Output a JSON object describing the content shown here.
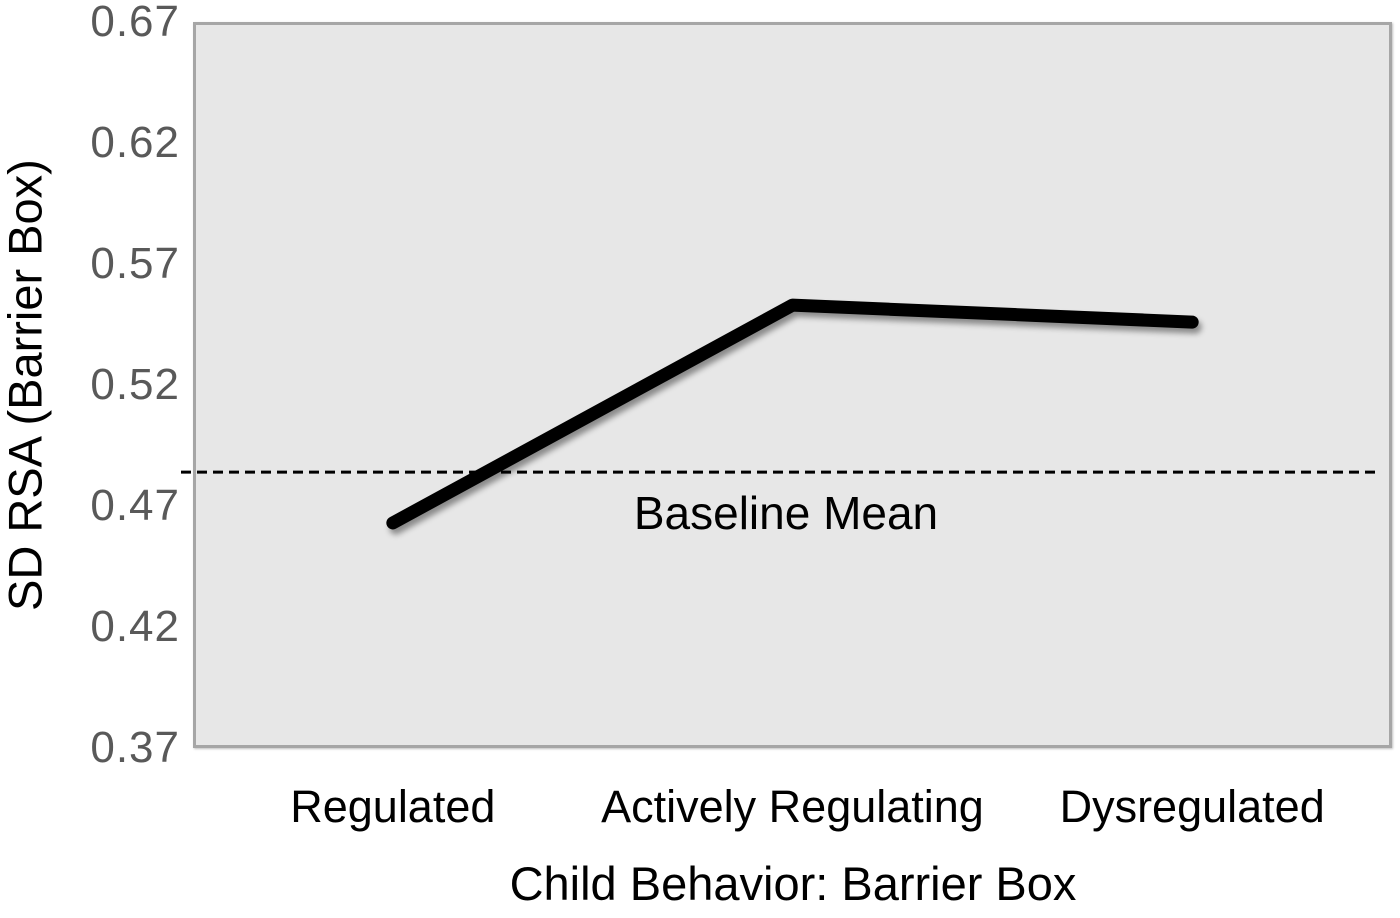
{
  "figure": {
    "background": "#FFFFFF"
  },
  "chart_data": {
    "type": "line",
    "title": "",
    "categories": [
      "Regulated",
      "Actively Regulating",
      "Dysregulated"
    ],
    "series": [
      {
        "name": "SD RSA",
        "values": [
          0.463,
          0.553,
          0.546
        ]
      }
    ],
    "baseline": {
      "label": "Baseline Mean",
      "value": 0.484
    },
    "xlabel": "Child Behavior: Barrier Box",
    "ylabel": "SD RSA (Barrier Box)",
    "ylim": [
      0.37,
      0.67
    ],
    "yticks": [
      0.37,
      0.42,
      0.47,
      0.52,
      0.57,
      0.62,
      0.67
    ],
    "ytick_decimals": 2,
    "grid": false,
    "legend": "none",
    "style": {
      "line_color": "#000000",
      "line_width": 13,
      "baseline_color": "#000000",
      "baseline_width": 3,
      "baseline_dash": "10 6",
      "plot_fill": "#E7E7E7",
      "plot_border": "#A6A6A6",
      "ytick_color": "#595959",
      "xtick_color": "#000000"
    }
  }
}
